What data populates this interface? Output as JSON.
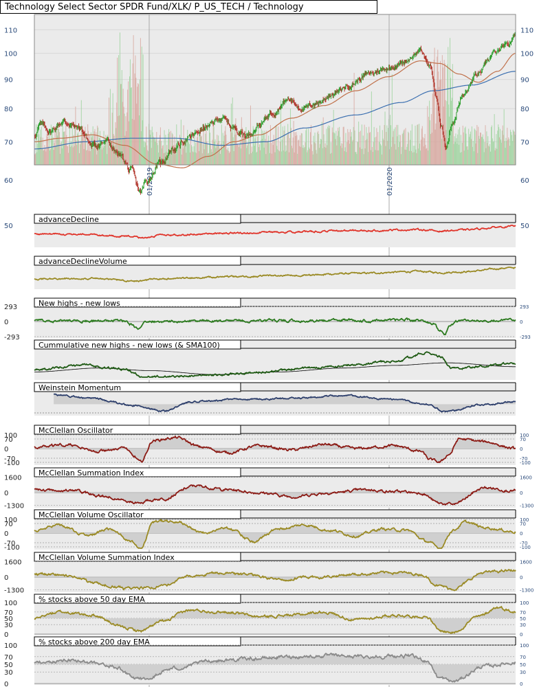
{
  "title": "Technology Select Sector SPDR Fund/XLK/ P_US_TECH / Technology",
  "colors": {
    "background": "#ebebeb",
    "grid": "#a8a8a8",
    "up": "#2f9e2f",
    "down": "#b0342a",
    "sma_short": "#c0704a",
    "sma_long": "#3b6fb0",
    "ad_red": "#e0342a",
    "olive": "#9a8a24",
    "green_line": "#2b7a1e",
    "dark_green": "#1f5a14",
    "navy": "#2c3e6b",
    "maroon": "#8b1a14",
    "gray_line": "#8a8a8a",
    "fill": "#cfcfcf",
    "axis_text": "#2a4a7a"
  },
  "chart_data": [
    {
      "name": "price",
      "type": "candlestick",
      "title": "Technology Select Sector SPDR Fund/XLK/ P_US_TECH / Technology",
      "scale": "log",
      "ylim": [
        54,
        117
      ],
      "y_ticks_left": [
        110,
        100,
        90,
        80,
        70,
        60,
        50
      ],
      "y_ticks_right": [
        110,
        100,
        90,
        80,
        70,
        60,
        50
      ],
      "x_labels": [
        "01/2019",
        "01/2020"
      ],
      "price_keyframes": [
        [
          0,
          72
        ],
        [
          10,
          75
        ],
        [
          25,
          73
        ],
        [
          45,
          76
        ],
        [
          70,
          74
        ],
        [
          90,
          69
        ],
        [
          110,
          70
        ],
        [
          135,
          66
        ],
        [
          150,
          62
        ],
        [
          165,
          57
        ],
        [
          175,
          60
        ],
        [
          195,
          64
        ],
        [
          215,
          68
        ],
        [
          240,
          71
        ],
        [
          265,
          74
        ],
        [
          290,
          77
        ],
        [
          310,
          74
        ],
        [
          330,
          72
        ],
        [
          350,
          75
        ],
        [
          370,
          79
        ],
        [
          395,
          83
        ],
        [
          420,
          80
        ],
        [
          440,
          82
        ],
        [
          465,
          85
        ],
        [
          490,
          88
        ],
        [
          520,
          92
        ],
        [
          545,
          94
        ],
        [
          570,
          96
        ],
        [
          600,
          101
        ],
        [
          615,
          95
        ],
        [
          625,
          84
        ],
        [
          632,
          74
        ],
        [
          640,
          69
        ],
        [
          650,
          76
        ],
        [
          665,
          84
        ],
        [
          690,
          92
        ],
        [
          715,
          100
        ],
        [
          735,
          103
        ],
        [
          748,
          108
        ]
      ],
      "sma_short_keyframes": [
        [
          0,
          70
        ],
        [
          40,
          71
        ],
        [
          90,
          72
        ],
        [
          140,
          69
        ],
        [
          190,
          64
        ],
        [
          230,
          63
        ],
        [
          270,
          66
        ],
        [
          310,
          70
        ],
        [
          350,
          72
        ],
        [
          400,
          77
        ],
        [
          450,
          81
        ],
        [
          500,
          86
        ],
        [
          550,
          91
        ],
        [
          600,
          97
        ],
        [
          630,
          96
        ],
        [
          660,
          92
        ],
        [
          690,
          89
        ],
        [
          720,
          93
        ],
        [
          748,
          100
        ]
      ],
      "sma_long_keyframes": [
        [
          0,
          68
        ],
        [
          80,
          70
        ],
        [
          150,
          71
        ],
        [
          220,
          71
        ],
        [
          290,
          69
        ],
        [
          360,
          70
        ],
        [
          420,
          74
        ],
        [
          500,
          78
        ],
        [
          570,
          82
        ],
        [
          620,
          86
        ],
        [
          680,
          88
        ],
        [
          748,
          93
        ]
      ],
      "volume": "bars, green up / red down, spikes near 135-165 and 615-650"
    },
    {
      "name": "advanceDecline",
      "title": "advanceDecline",
      "type": "line",
      "color_key": "ad_red",
      "keyframes": [
        [
          0,
          0.55
        ],
        [
          80,
          0.52
        ],
        [
          150,
          0.42
        ],
        [
          165,
          0.35
        ],
        [
          200,
          0.48
        ],
        [
          300,
          0.6
        ],
        [
          400,
          0.66
        ],
        [
          500,
          0.72
        ],
        [
          600,
          0.78
        ],
        [
          630,
          0.7
        ],
        [
          650,
          0.74
        ],
        [
          748,
          0.95
        ]
      ]
    },
    {
      "name": "advanceDeclineVolume",
      "title": "advanceDeclineVolume",
      "type": "line",
      "color_key": "olive",
      "keyframes": [
        [
          0,
          0.4
        ],
        [
          80,
          0.42
        ],
        [
          160,
          0.3
        ],
        [
          200,
          0.4
        ],
        [
          300,
          0.5
        ],
        [
          400,
          0.58
        ],
        [
          500,
          0.68
        ],
        [
          600,
          0.78
        ],
        [
          630,
          0.72
        ],
        [
          660,
          0.76
        ],
        [
          748,
          0.98
        ]
      ]
    },
    {
      "name": "newHighsLows",
      "title": "New highs - new lows",
      "type": "line",
      "color_key": "green_line",
      "y_ticks_left": [
        293,
        0,
        -293
      ],
      "y_ticks_right": [
        293,
        0,
        -293
      ],
      "ylim": [
        -293,
        293
      ],
      "keyframes": [
        [
          0,
          20
        ],
        [
          140,
          10
        ],
        [
          150,
          -60
        ],
        [
          160,
          -150
        ],
        [
          175,
          0
        ],
        [
          300,
          10
        ],
        [
          500,
          20
        ],
        [
          570,
          30
        ],
        [
          600,
          15
        ],
        [
          620,
          -60
        ],
        [
          630,
          -190
        ],
        [
          638,
          -250
        ],
        [
          645,
          -80
        ],
        [
          660,
          10
        ],
        [
          748,
          30
        ]
      ]
    },
    {
      "name": "cumulativeNewHighsLows",
      "title": "Cummulative new highs - new lows (& SMA100)",
      "type": "line",
      "color_key": "dark_green",
      "keyframes": [
        [
          0,
          0.3
        ],
        [
          80,
          0.45
        ],
        [
          140,
          0.3
        ],
        [
          170,
          0.0
        ],
        [
          260,
          0.05
        ],
        [
          360,
          0.2
        ],
        [
          420,
          0.35
        ],
        [
          560,
          0.6
        ],
        [
          610,
          0.95
        ],
        [
          630,
          0.8
        ],
        [
          650,
          0.35
        ],
        [
          748,
          0.5
        ]
      ],
      "sma_keyframes": [
        [
          0,
          0.2
        ],
        [
          100,
          0.35
        ],
        [
          180,
          0.25
        ],
        [
          280,
          0.1
        ],
        [
          380,
          0.2
        ],
        [
          480,
          0.35
        ],
        [
          560,
          0.45
        ],
        [
          640,
          0.55
        ],
        [
          748,
          0.4
        ]
      ]
    },
    {
      "name": "weinsteinMomentum",
      "title": "Weinstein Momentum",
      "type": "line",
      "color_key": "navy",
      "keyframes": [
        [
          30,
          0.95
        ],
        [
          90,
          0.75
        ],
        [
          150,
          0.4
        ],
        [
          200,
          0.1
        ],
        [
          250,
          0.6
        ],
        [
          320,
          0.7
        ],
        [
          400,
          0.75
        ],
        [
          480,
          0.9
        ],
        [
          560,
          0.7
        ],
        [
          610,
          0.45
        ],
        [
          640,
          0.05
        ],
        [
          690,
          0.4
        ],
        [
          748,
          0.6
        ]
      ]
    },
    {
      "name": "mcclellanOscillator",
      "title": "McClellan Oscillator",
      "type": "line",
      "color_key": "maroon",
      "y_ticks_left": [
        100,
        70,
        0,
        -70,
        -100
      ],
      "y_ticks_right": [
        100,
        70,
        0,
        -70,
        -100
      ],
      "ylim": [
        -110,
        110
      ],
      "keyframes": [
        [
          0,
          10
        ],
        [
          50,
          30
        ],
        [
          100,
          -20
        ],
        [
          140,
          10
        ],
        [
          155,
          -60
        ],
        [
          165,
          -100
        ],
        [
          185,
          60
        ],
        [
          220,
          80
        ],
        [
          260,
          10
        ],
        [
          300,
          -30
        ],
        [
          350,
          20
        ],
        [
          400,
          -10
        ],
        [
          450,
          30
        ],
        [
          500,
          0
        ],
        [
          560,
          20
        ],
        [
          600,
          -20
        ],
        [
          615,
          -80
        ],
        [
          630,
          -100
        ],
        [
          645,
          -40
        ],
        [
          660,
          70
        ],
        [
          700,
          50
        ],
        [
          748,
          0
        ]
      ]
    },
    {
      "name": "mcclellanSummation",
      "title": "McClellan Summation Index",
      "type": "line",
      "color_key": "maroon",
      "y_ticks_left": [
        1600,
        0,
        -1300
      ],
      "y_ticks_right": [
        1600,
        0,
        -1300
      ],
      "ylim": [
        -1400,
        1700
      ],
      "keyframes": [
        [
          0,
          300
        ],
        [
          60,
          200
        ],
        [
          100,
          -300
        ],
        [
          160,
          -1000
        ],
        [
          200,
          -600
        ],
        [
          250,
          700
        ],
        [
          300,
          300
        ],
        [
          350,
          0
        ],
        [
          400,
          -400
        ],
        [
          460,
          0
        ],
        [
          520,
          300
        ],
        [
          560,
          100
        ],
        [
          600,
          0
        ],
        [
          630,
          -1100
        ],
        [
          650,
          -1200
        ],
        [
          700,
          500
        ],
        [
          748,
          200
        ]
      ]
    },
    {
      "name": "mcclellanVolumeOscillator",
      "title": "McClellan Volume Oscillator",
      "type": "line",
      "color_key": "olive",
      "y_ticks_left": [
        100,
        70,
        0,
        -70,
        -100
      ],
      "y_ticks_right": [
        100,
        70,
        0,
        -70,
        -100
      ],
      "ylim": [
        -110,
        110
      ],
      "keyframes": [
        [
          0,
          20
        ],
        [
          40,
          60
        ],
        [
          80,
          -20
        ],
        [
          120,
          30
        ],
        [
          150,
          -60
        ],
        [
          165,
          -110
        ],
        [
          185,
          80
        ],
        [
          220,
          90
        ],
        [
          260,
          0
        ],
        [
          300,
          40
        ],
        [
          340,
          -60
        ],
        [
          380,
          30
        ],
        [
          420,
          60
        ],
        [
          460,
          20
        ],
        [
          500,
          -20
        ],
        [
          540,
          30
        ],
        [
          580,
          20
        ],
        [
          610,
          -60
        ],
        [
          630,
          -110
        ],
        [
          650,
          20
        ],
        [
          670,
          80
        ],
        [
          700,
          40
        ],
        [
          748,
          10
        ]
      ]
    },
    {
      "name": "mcclellanVolumeSummation",
      "title": "McClellan Volume Summation Index",
      "type": "line",
      "color_key": "olive",
      "y_ticks_left": [
        1600,
        0,
        -1300
      ],
      "y_ticks_right": [
        1600,
        0,
        -1300
      ],
      "ylim": [
        -1400,
        1700
      ],
      "keyframes": [
        [
          0,
          300
        ],
        [
          50,
          200
        ],
        [
          100,
          -700
        ],
        [
          150,
          -1200
        ],
        [
          200,
          -900
        ],
        [
          240,
          100
        ],
        [
          280,
          400
        ],
        [
          330,
          200
        ],
        [
          380,
          -200
        ],
        [
          440,
          0
        ],
        [
          500,
          300
        ],
        [
          560,
          500
        ],
        [
          600,
          300
        ],
        [
          630,
          -900
        ],
        [
          650,
          -1200
        ],
        [
          700,
          500
        ],
        [
          748,
          700
        ]
      ]
    },
    {
      "name": "pctAbove50",
      "title": "% stocks above 50 day EMA",
      "type": "line",
      "color_key": "olive",
      "y_ticks_left": [
        100,
        70,
        50,
        30,
        0
      ],
      "y_ticks_right": [
        100,
        70,
        50,
        30,
        0
      ],
      "ylim": [
        0,
        100
      ],
      "keyframes": [
        [
          0,
          50
        ],
        [
          40,
          70
        ],
        [
          90,
          60
        ],
        [
          140,
          20
        ],
        [
          165,
          10
        ],
        [
          200,
          40
        ],
        [
          240,
          75
        ],
        [
          300,
          70
        ],
        [
          350,
          55
        ],
        [
          400,
          60
        ],
        [
          450,
          70
        ],
        [
          500,
          45
        ],
        [
          560,
          60
        ],
        [
          610,
          55
        ],
        [
          630,
          10
        ],
        [
          650,
          5
        ],
        [
          690,
          55
        ],
        [
          720,
          85
        ],
        [
          748,
          70
        ]
      ]
    },
    {
      "name": "pctAbove200",
      "title": "% stocks above 200 day EMA",
      "type": "line",
      "color_key": "gray_line",
      "y_ticks_left": [
        100,
        70,
        50,
        30,
        0
      ],
      "y_ticks_right": [
        100,
        70,
        50,
        30,
        0
      ],
      "ylim": [
        0,
        100
      ],
      "keyframes": [
        [
          0,
          55
        ],
        [
          60,
          60
        ],
        [
          120,
          45
        ],
        [
          165,
          10
        ],
        [
          220,
          40
        ],
        [
          280,
          60
        ],
        [
          340,
          65
        ],
        [
          400,
          70
        ],
        [
          460,
          72
        ],
        [
          520,
          70
        ],
        [
          580,
          72
        ],
        [
          610,
          60
        ],
        [
          630,
          15
        ],
        [
          650,
          5
        ],
        [
          700,
          45
        ],
        [
          748,
          55
        ]
      ]
    }
  ]
}
